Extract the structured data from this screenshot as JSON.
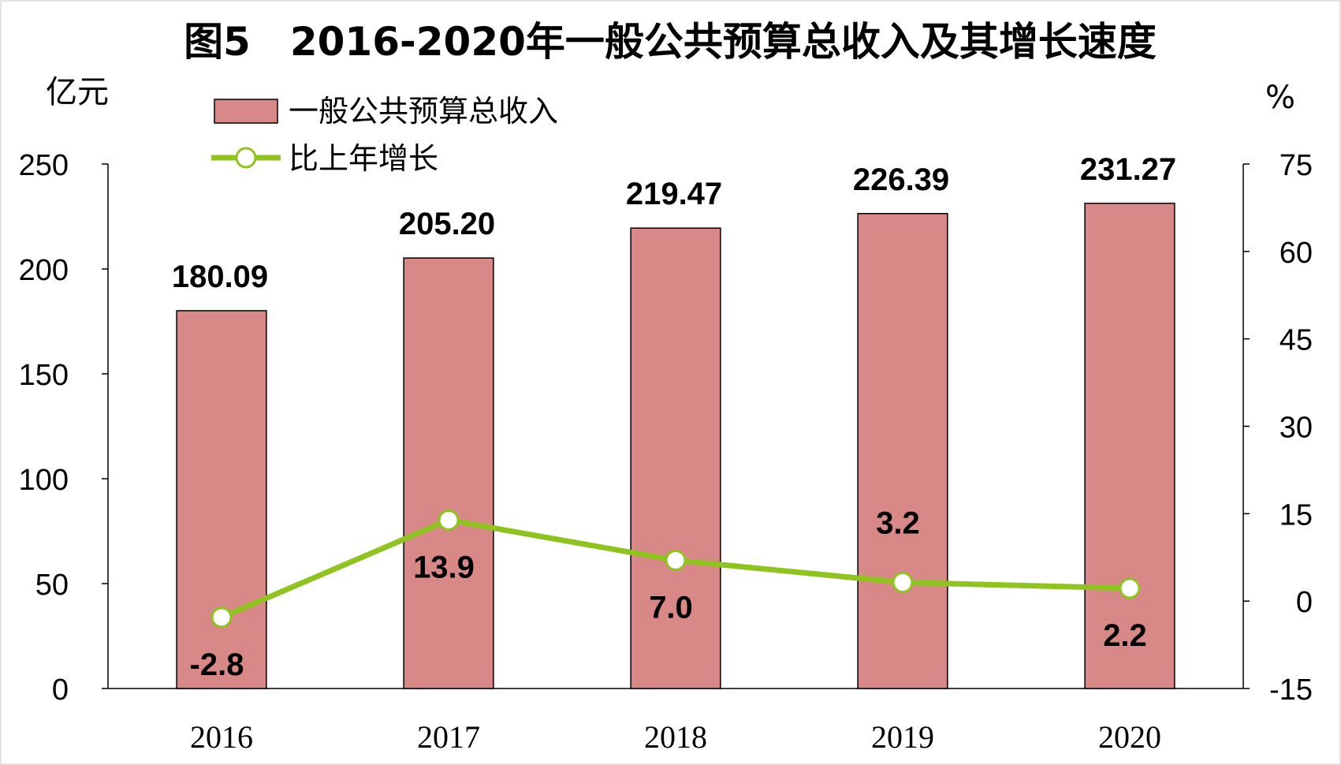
{
  "chart_data": {
    "type": "bar",
    "title": "图5　2016-2020年一般公共预算总收入及其增长速度",
    "categories": [
      "2016",
      "2017",
      "2018",
      "2019",
      "2020"
    ],
    "series": [
      {
        "name": "一般公共预算总收入",
        "type": "bar",
        "axis": "left",
        "values": [
          180.09,
          205.2,
          219.47,
          226.39,
          231.27
        ],
        "labels": [
          "180.09",
          "205.20",
          "219.47",
          "226.39",
          "231.27"
        ],
        "color": "#d98888"
      },
      {
        "name": "比上年增长",
        "type": "line",
        "axis": "right",
        "values": [
          -2.8,
          13.9,
          7.0,
          3.2,
          2.2
        ],
        "labels": [
          "-2.8",
          "13.9",
          "7.0",
          "3.2",
          "2.2"
        ],
        "color": "#8fc31f"
      }
    ],
    "y_left": {
      "unit": "亿元",
      "ylim": [
        0,
        250
      ],
      "ticks": [
        "0",
        "50",
        "100",
        "150",
        "200",
        "250"
      ]
    },
    "y_right": {
      "unit": "%",
      "ylim": [
        -15,
        75
      ],
      "ticks": [
        "-15",
        "0",
        "15",
        "30",
        "45",
        "60",
        "75"
      ]
    },
    "grid": false,
    "legend_position": "top-left"
  }
}
